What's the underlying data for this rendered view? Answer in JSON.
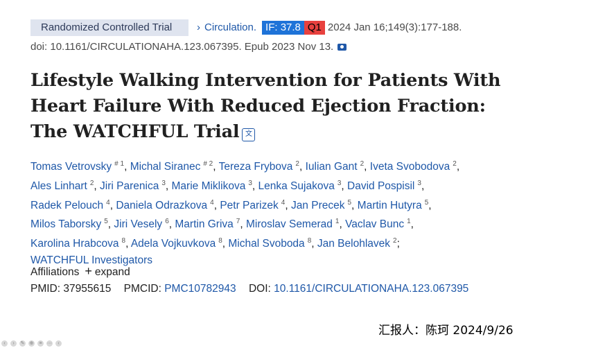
{
  "header": {
    "publication_type": "Randomized Controlled Trial",
    "chevron_icon": "chevron-right-icon",
    "journal": "Circulation.",
    "impact_factor": "IF: 37.8",
    "quartile": "Q1",
    "citation": "2024 Jan 16;149(3):177-188.",
    "doi_epub": "doi: 10.1161/CIRCULATIONAHA.123.067395. Epub 2023 Nov 13.",
    "camera_icon": "camera-icon",
    "colors": {
      "if_badge": "#1e73d8",
      "q_badge": "#e8413e",
      "link": "#1f58a8"
    }
  },
  "article": {
    "title": "Lifestyle Walking Intervention for Patients With Heart Failure With Reduced Ejection Fraction: The WATCHFUL Trial",
    "translate_icon": "translate-icon"
  },
  "authors": {
    "lines": [
      [
        {
          "name": "Tomas Vetrovsky",
          "sup": "# 1",
          "sep": ","
        },
        {
          "name": "Michal Siranec",
          "sup": "# 2",
          "sep": ","
        },
        {
          "name": "Tereza Frybova",
          "sup": "2",
          "sep": ","
        },
        {
          "name": "Iulian Gant",
          "sup": "2",
          "sep": ","
        },
        {
          "name": "Iveta Svobodova",
          "sup": "2",
          "sep": ","
        }
      ],
      [
        {
          "name": "Ales Linhart",
          "sup": "2",
          "sep": ","
        },
        {
          "name": "Jiri Parenica",
          "sup": "3",
          "sep": ","
        },
        {
          "name": "Marie Miklikova",
          "sup": "3",
          "sep": ","
        },
        {
          "name": "Lenka Sujakova",
          "sup": "3",
          "sep": ","
        },
        {
          "name": "David Pospisil",
          "sup": "3",
          "sep": ","
        }
      ],
      [
        {
          "name": "Radek Pelouch",
          "sup": "4",
          "sep": ","
        },
        {
          "name": "Daniela Odrazkova",
          "sup": "4",
          "sep": ","
        },
        {
          "name": "Petr Parizek",
          "sup": "4",
          "sep": ","
        },
        {
          "name": "Jan Precek",
          "sup": "5",
          "sep": ","
        },
        {
          "name": "Martin Hutyra",
          "sup": "5",
          "sep": ","
        }
      ],
      [
        {
          "name": "Milos Taborsky",
          "sup": "5",
          "sep": ","
        },
        {
          "name": "Jiri Vesely",
          "sup": "6",
          "sep": ","
        },
        {
          "name": "Martin Griva",
          "sup": "7",
          "sep": ","
        },
        {
          "name": "Miroslav Semerad",
          "sup": "1",
          "sep": ","
        },
        {
          "name": "Vaclav Bunc",
          "sup": "1",
          "sep": ","
        }
      ],
      [
        {
          "name": "Karolina Hrabcova",
          "sup": "8",
          "sep": ","
        },
        {
          "name": "Adela Vojkuvkova",
          "sup": "8",
          "sep": ","
        },
        {
          "name": "Michal Svoboda",
          "sup": "8",
          "sep": ","
        },
        {
          "name": "Jan Belohlavek",
          "sup": "2",
          "sep": ";"
        }
      ],
      [
        {
          "name": "WATCHFUL Investigators",
          "sup": "",
          "sep": ""
        }
      ]
    ]
  },
  "affiliations": {
    "label": "Affiliations",
    "plus_icon": "plus-icon",
    "expand_label": "expand"
  },
  "identifiers": {
    "pmid_label": "PMID:",
    "pmid": "37955615",
    "pmcid_label": "PMCID:",
    "pmcid": "PMC10782943",
    "doi_label": "DOI:",
    "doi": "10.1161/CIRCULATIONAHA.123.067395"
  },
  "footer": {
    "reporter": "汇报人：陈珂 2024/9/26"
  },
  "toolbar": {
    "icons": [
      "prev-icon",
      "next-icon",
      "pen-icon",
      "zoom-icon",
      "menu-icon",
      "more-icon",
      "back-icon"
    ],
    "glyphs": [
      "‹",
      "›",
      "✎",
      "⊕",
      "≡",
      "⋯",
      "‹"
    ]
  }
}
